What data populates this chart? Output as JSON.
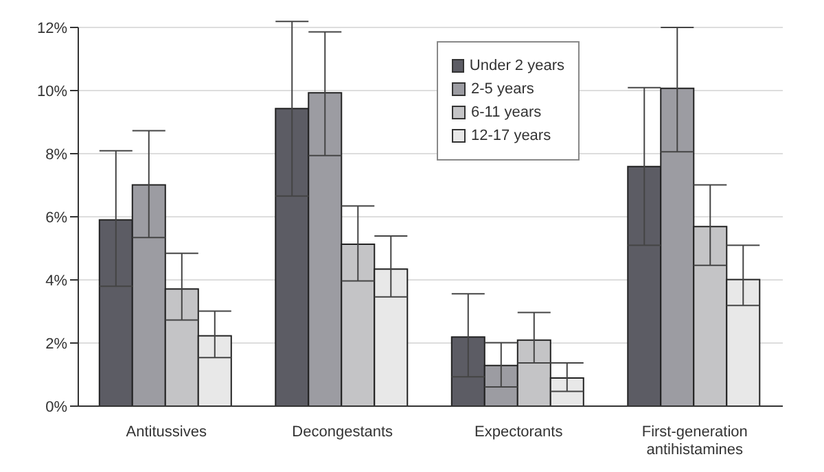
{
  "chart_data": {
    "type": "bar",
    "categories": [
      "Antitussives",
      "Decongestants",
      "Expectorants",
      "First-generation antihistamines"
    ],
    "series": [
      {
        "name": "Under 2 years",
        "color": "#5c5c64",
        "values": [
          5.9,
          9.43,
          2.19,
          7.59
        ],
        "errors": [
          [
            3.8,
            8.09
          ],
          [
            6.66,
            12.19
          ],
          [
            0.93,
            3.56
          ],
          [
            5.1,
            10.09
          ]
        ]
      },
      {
        "name": "2-5 years",
        "color": "#9c9ca2",
        "values": [
          7.01,
          9.93,
          1.29,
          10.07
        ],
        "errors": [
          [
            5.34,
            8.73
          ],
          [
            7.94,
            11.86
          ],
          [
            0.61,
            2.01
          ],
          [
            8.06,
            12.0
          ]
        ]
      },
      {
        "name": "6-11 years",
        "color": "#c4c4c6",
        "values": [
          3.71,
          5.13,
          2.09,
          5.69
        ],
        "errors": [
          [
            2.73,
            4.84
          ],
          [
            3.97,
            6.34
          ],
          [
            1.37,
            2.97
          ],
          [
            4.46,
            7.01
          ]
        ]
      },
      {
        "name": "12-17 years",
        "color": "#e8e8e8",
        "values": [
          2.23,
          4.34,
          0.89,
          4.01
        ],
        "errors": [
          [
            1.54,
            3.01
          ],
          [
            3.46,
            5.39
          ],
          [
            0.47,
            1.37
          ],
          [
            3.19,
            5.1
          ]
        ]
      }
    ],
    "ylim": [
      0,
      12
    ],
    "yticks": [
      {
        "value": 0,
        "label": "0%"
      },
      {
        "value": 2,
        "label": "2%"
      },
      {
        "value": 4,
        "label": "4%"
      },
      {
        "value": 6,
        "label": "6%"
      },
      {
        "value": 8,
        "label": "8%"
      },
      {
        "value": 10,
        "label": "10%"
      },
      {
        "value": 12,
        "label": "12%"
      }
    ],
    "grid": "y",
    "legend": "top"
  }
}
